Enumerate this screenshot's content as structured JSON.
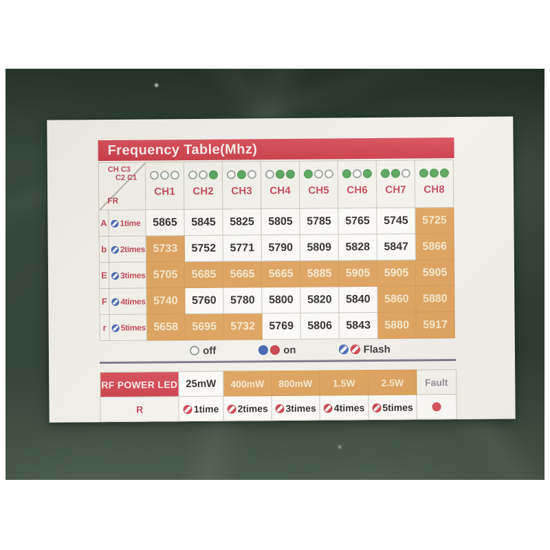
{
  "title": "Frequency Table(Mhz)",
  "colors": {
    "banner_red": "#cf414b",
    "accent_crimson": "#c2485a",
    "highlight_orange": "#dda25c",
    "led_green": "#58a55c",
    "led_blue": "#3e63b0",
    "led_red": "#c8434d",
    "surface_green": "#2f4134",
    "card_background": "#f1efe9"
  },
  "freq_table": {
    "corner": {
      "line1": "CH C3",
      "line2": "C2 C1",
      "fr": "FR"
    },
    "channels": [
      {
        "label": "CH1",
        "leds": [
          0,
          0,
          0
        ]
      },
      {
        "label": "CH2",
        "leds": [
          0,
          0,
          1
        ]
      },
      {
        "label": "CH3",
        "leds": [
          0,
          1,
          0
        ]
      },
      {
        "label": "CH4",
        "leds": [
          0,
          1,
          1
        ]
      },
      {
        "label": "CH5",
        "leds": [
          1,
          0,
          0
        ]
      },
      {
        "label": "CH6",
        "leds": [
          1,
          0,
          1
        ]
      },
      {
        "label": "CH7",
        "leds": [
          1,
          1,
          0
        ]
      },
      {
        "label": "CH8",
        "leds": [
          1,
          1,
          1
        ]
      }
    ],
    "rows": [
      {
        "band": "A",
        "times": "1time",
        "values": [
          "5865",
          "5845",
          "5825",
          "5805",
          "5785",
          "5765",
          "5745",
          "5725"
        ],
        "highlight": [
          0,
          0,
          0,
          0,
          0,
          0,
          0,
          1
        ]
      },
      {
        "band": "b",
        "times": "2times",
        "values": [
          "5733",
          "5752",
          "5771",
          "5790",
          "5809",
          "5828",
          "5847",
          "5866"
        ],
        "highlight": [
          1,
          0,
          0,
          0,
          0,
          0,
          0,
          1
        ]
      },
      {
        "band": "E",
        "times": "3times",
        "values": [
          "5705",
          "5685",
          "5665",
          "5665",
          "5885",
          "5905",
          "5905",
          "5905"
        ],
        "highlight": [
          1,
          1,
          1,
          1,
          1,
          1,
          1,
          1
        ]
      },
      {
        "band": "F",
        "times": "4times",
        "values": [
          "5740",
          "5760",
          "5780",
          "5800",
          "5820",
          "5840",
          "5860",
          "5880"
        ],
        "highlight": [
          1,
          0,
          0,
          0,
          0,
          0,
          1,
          1
        ]
      },
      {
        "band": "r",
        "times": "5times",
        "values": [
          "5658",
          "5695",
          "5732",
          "5769",
          "5806",
          "5843",
          "5880",
          "5917"
        ],
        "highlight": [
          1,
          1,
          1,
          0,
          0,
          0,
          1,
          1
        ]
      }
    ]
  },
  "legend": {
    "off_label": "off",
    "on_label": "on",
    "flash_label": "Flash"
  },
  "power_table": {
    "title": "RF POWER LED",
    "row1": [
      {
        "label": "25mW",
        "style": "plain"
      },
      {
        "label": "400mW",
        "style": "orange"
      },
      {
        "label": "800mW",
        "style": "orange"
      },
      {
        "label": "1.5W",
        "style": "orange"
      },
      {
        "label": "2.5W",
        "style": "orange"
      },
      {
        "label": "Fault",
        "style": "fault"
      }
    ],
    "r_label": "R",
    "row2": [
      "1time",
      "2times",
      "3times",
      "4times",
      "5times"
    ]
  }
}
